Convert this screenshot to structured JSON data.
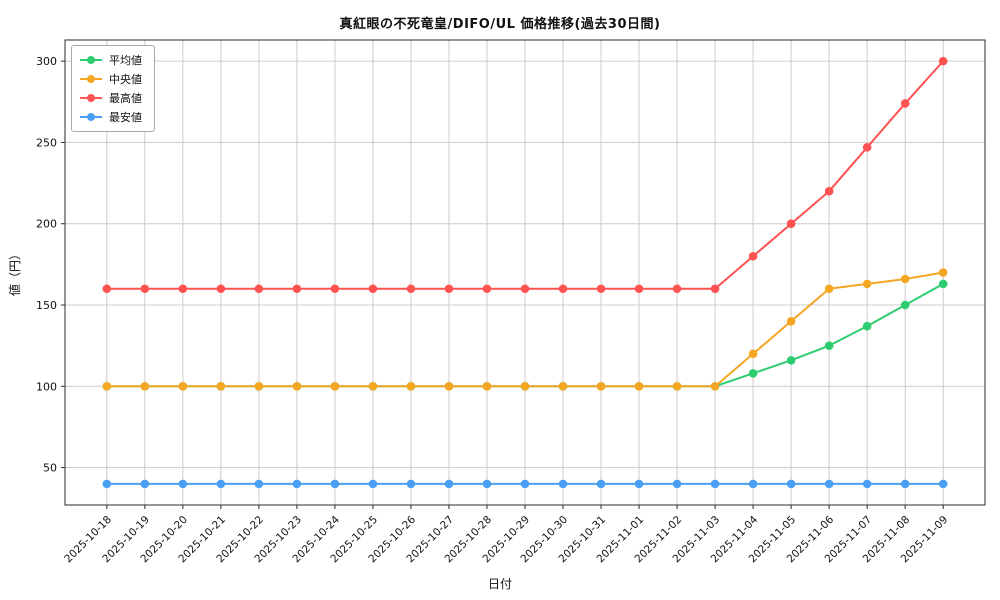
{
  "chart_data": {
    "type": "line",
    "title": "真紅眼の不死竜皇/DIFO/UL 価格推移(過去30日間)",
    "xlabel": "日付",
    "ylabel": "値（円）",
    "x": [
      "2025-10-18",
      "2025-10-19",
      "2025-10-20",
      "2025-10-21",
      "2025-10-22",
      "2025-10-23",
      "2025-10-24",
      "2025-10-25",
      "2025-10-26",
      "2025-10-27",
      "2025-10-28",
      "2025-10-29",
      "2025-10-30",
      "2025-10-31",
      "2025-11-01",
      "2025-11-02",
      "2025-11-03",
      "2025-11-04",
      "2025-11-05",
      "2025-11-06",
      "2025-11-07",
      "2025-11-08",
      "2025-11-09"
    ],
    "ylim": [
      27,
      313
    ],
    "yticks": [
      50,
      100,
      150,
      200,
      250,
      300
    ],
    "grid": true,
    "legend_position": "upper left",
    "series": [
      {
        "name": "平均値",
        "color": "#2ecc71",
        "values": [
          100,
          100,
          100,
          100,
          100,
          100,
          100,
          100,
          100,
          100,
          100,
          100,
          100,
          100,
          100,
          100,
          100,
          108,
          116,
          125,
          137,
          150,
          163
        ]
      },
      {
        "name": "中央値",
        "color": "#f5a623",
        "values": [
          100,
          100,
          100,
          100,
          100,
          100,
          100,
          100,
          100,
          100,
          100,
          100,
          100,
          100,
          100,
          100,
          100,
          120,
          140,
          160,
          163,
          166,
          170
        ]
      },
      {
        "name": "最高値",
        "color": "#ff5252",
        "values": [
          160,
          160,
          160,
          160,
          160,
          160,
          160,
          160,
          160,
          160,
          160,
          160,
          160,
          160,
          160,
          160,
          160,
          180,
          200,
          220,
          247,
          274,
          300
        ]
      },
      {
        "name": "最安値",
        "color": "#4a9ff5",
        "values": [
          40,
          40,
          40,
          40,
          40,
          40,
          40,
          40,
          40,
          40,
          40,
          40,
          40,
          40,
          40,
          40,
          40,
          40,
          40,
          40,
          40,
          40,
          40
        ]
      }
    ],
    "colors": {
      "grid": "#cccccc",
      "axes": "#2b2b2b",
      "text": "#111111",
      "background": "#ffffff"
    }
  }
}
